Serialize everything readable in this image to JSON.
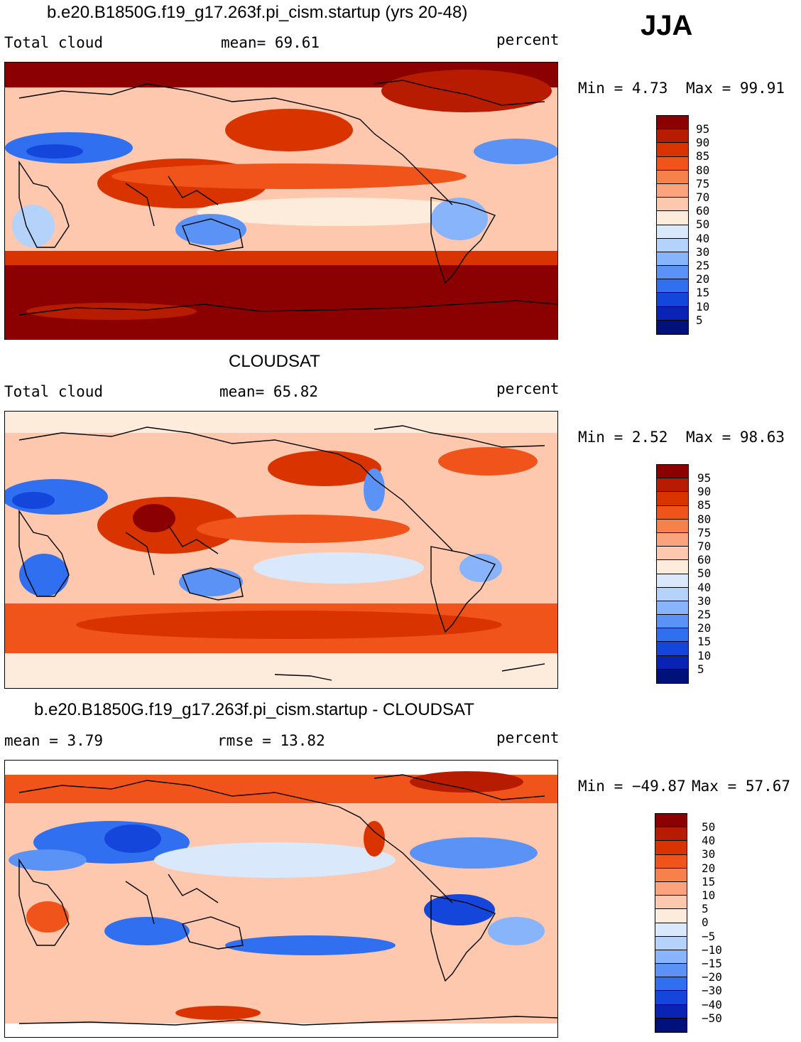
{
  "season": "JJA",
  "palette": [
    "#8b0000",
    "#b71c00",
    "#d93400",
    "#f0541a",
    "#f7814b",
    "#fba37c",
    "#fdc8ad",
    "#fdecdc",
    "#d9e8fb",
    "#b5d2fa",
    "#87b4fa",
    "#5a93f5",
    "#2f6ff0",
    "#1446dc",
    "#0a23b4",
    "#00127a"
  ],
  "panels": [
    {
      "title": "b.e20.B1850G.f19_g17.263f.pi_cism.startup (yrs 20-48)",
      "left_label": "Total cloud",
      "mean_text": "mean=   69.61",
      "units": "percent",
      "min_text": "Min =    4.73",
      "max_text": "Max =   99.91",
      "ticks": [
        "95",
        "90",
        "85",
        "80",
        "75",
        "70",
        "60",
        "50",
        "40",
        "30",
        "25",
        "20",
        "15",
        "10",
        "5"
      ],
      "chart_data": {
        "type": "heatmap",
        "variable": "Total cloud",
        "units": "percent",
        "mean": 69.61,
        "min": 4.73,
        "max": 99.91,
        "levels": [
          5,
          10,
          15,
          20,
          25,
          30,
          40,
          50,
          60,
          70,
          75,
          80,
          85,
          90,
          95
        ]
      }
    },
    {
      "title": "CLOUDSAT",
      "left_label": "Total cloud",
      "mean_text": "mean=   65.82",
      "units": "percent",
      "min_text": "Min =    2.52",
      "max_text": "Max =   98.63",
      "ticks": [
        "95",
        "90",
        "85",
        "80",
        "75",
        "70",
        "60",
        "50",
        "40",
        "30",
        "25",
        "20",
        "15",
        "10",
        "5"
      ],
      "chart_data": {
        "type": "heatmap",
        "variable": "Total cloud",
        "units": "percent",
        "mean": 65.82,
        "min": 2.52,
        "max": 98.63,
        "levels": [
          5,
          10,
          15,
          20,
          25,
          30,
          40,
          50,
          60,
          70,
          75,
          80,
          85,
          90,
          95
        ]
      }
    },
    {
      "title": "b.e20.B1850G.f19_g17.263f.pi_cism.startup - CLOUDSAT",
      "left_label": "mean =     3.79",
      "mean_text": "rmse =   13.82",
      "units": "percent",
      "min_text": "Min = −49.87",
      "max_text": "Max =   57.67",
      "ticks": [
        "50",
        "40",
        "30",
        "20",
        "15",
        "10",
        "5",
        "0",
        "−5",
        "−10",
        "−15",
        "−20",
        "−30",
        "−40",
        "−50"
      ],
      "chart_data": {
        "type": "heatmap",
        "variable": "Total cloud difference",
        "units": "percent",
        "mean": 3.79,
        "rmse": 13.82,
        "min": -49.87,
        "max": 57.67,
        "levels": [
          -50,
          -40,
          -30,
          -20,
          -15,
          -10,
          -5,
          0,
          5,
          10,
          15,
          20,
          30,
          40,
          50
        ]
      }
    }
  ]
}
